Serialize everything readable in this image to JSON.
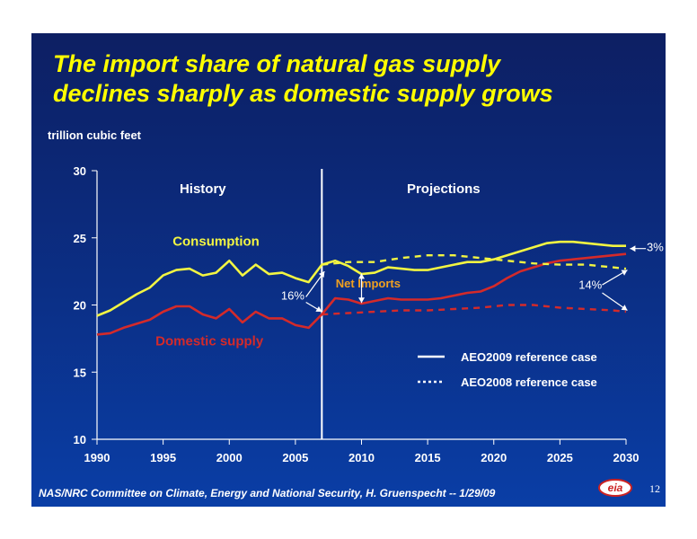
{
  "slide": {
    "title_line1": "The import share of natural gas supply",
    "title_line2": "declines sharply as domestic supply grows",
    "unit_label": "trillion cubic feet",
    "footer": "NAS/NRC Committee on Climate, Energy and National Security, H. Gruenspecht -- 1/29/09",
    "page_number": "12",
    "logo_text": "eia"
  },
  "chart_data": {
    "type": "line",
    "title": "The import share of natural gas supply declines sharply as domestic supply grows",
    "ylabel": "trillion cubic feet",
    "xlim": [
      1990,
      2030
    ],
    "ylim": [
      10,
      30
    ],
    "x_ticks": [
      1990,
      1995,
      2000,
      2005,
      2010,
      2015,
      2020,
      2025,
      2030
    ],
    "y_ticks": [
      10,
      15,
      20,
      25,
      30
    ],
    "grid": false,
    "legend_position": "bottom-right",
    "colors": {
      "consumption": "#f2f542",
      "domestic": "#d42a2a",
      "divider": "#ffffff",
      "annotation": "#ffffff",
      "net_imports": "#f0a020"
    },
    "divider_year": 2007,
    "region_labels": {
      "history": "History",
      "projections": "Projections"
    },
    "series": [
      {
        "name": "Consumption",
        "case": "AEO2009",
        "style": "solid",
        "x": [
          1990,
          1991,
          1992,
          1993,
          1994,
          1995,
          1996,
          1997,
          1998,
          1999,
          2000,
          2001,
          2002,
          2003,
          2004,
          2005,
          2006,
          2007,
          2008,
          2009,
          2010,
          2011,
          2012,
          2013,
          2014,
          2015,
          2016,
          2017,
          2018,
          2019,
          2020,
          2021,
          2022,
          2023,
          2024,
          2025,
          2026,
          2027,
          2028,
          2029,
          2030
        ],
        "values": [
          19.2,
          19.6,
          20.2,
          20.8,
          21.3,
          22.2,
          22.6,
          22.7,
          22.2,
          22.4,
          23.3,
          22.2,
          23.0,
          22.3,
          22.4,
          22.0,
          21.7,
          23.0,
          23.3,
          22.9,
          22.3,
          22.4,
          22.8,
          22.7,
          22.6,
          22.6,
          22.8,
          23.0,
          23.2,
          23.2,
          23.4,
          23.7,
          24.0,
          24.3,
          24.6,
          24.7,
          24.7,
          24.6,
          24.5,
          24.4,
          24.4
        ]
      },
      {
        "name": "Domestic supply",
        "case": "AEO2009",
        "style": "solid",
        "x": [
          1990,
          1991,
          1992,
          1993,
          1994,
          1995,
          1996,
          1997,
          1998,
          1999,
          2000,
          2001,
          2002,
          2003,
          2004,
          2005,
          2006,
          2007,
          2008,
          2009,
          2010,
          2011,
          2012,
          2013,
          2014,
          2015,
          2016,
          2017,
          2018,
          2019,
          2020,
          2021,
          2022,
          2023,
          2024,
          2025,
          2026,
          2027,
          2028,
          2029,
          2030
        ],
        "values": [
          17.8,
          17.9,
          18.3,
          18.6,
          18.9,
          19.5,
          19.9,
          19.9,
          19.3,
          19.0,
          19.7,
          18.7,
          19.5,
          19.0,
          19.0,
          18.5,
          18.3,
          19.3,
          20.5,
          20.4,
          20.1,
          20.3,
          20.5,
          20.4,
          20.4,
          20.4,
          20.5,
          20.7,
          20.9,
          21.0,
          21.4,
          22.0,
          22.5,
          22.8,
          23.1,
          23.3,
          23.4,
          23.5,
          23.6,
          23.7,
          23.8
        ]
      },
      {
        "name": "Consumption",
        "case": "AEO2008",
        "style": "dotted",
        "x": [
          2007,
          2009,
          2011,
          2013,
          2015,
          2017,
          2019,
          2021,
          2023,
          2025,
          2027,
          2029,
          2030
        ],
        "values": [
          23.0,
          23.2,
          23.2,
          23.5,
          23.7,
          23.7,
          23.5,
          23.3,
          23.1,
          23.0,
          23.0,
          22.8,
          22.7
        ]
      },
      {
        "name": "Domestic supply",
        "case": "AEO2008",
        "style": "dotted",
        "x": [
          2007,
          2009,
          2011,
          2013,
          2015,
          2017,
          2019,
          2021,
          2023,
          2025,
          2027,
          2029,
          2030
        ],
        "values": [
          19.3,
          19.4,
          19.5,
          19.6,
          19.6,
          19.7,
          19.8,
          20.0,
          20.0,
          19.8,
          19.7,
          19.6,
          19.5
        ]
      }
    ],
    "annotations": [
      {
        "id": "consumption",
        "text": "Consumption",
        "x": 1999,
        "y": 24.4,
        "color": "#f2f542"
      },
      {
        "id": "domestic",
        "text": "Domestic supply",
        "x": 1998.5,
        "y": 17.0,
        "color": "#d42a2a"
      },
      {
        "id": "net_imports",
        "text": "Net Imports",
        "x": 2010.5,
        "y": 21.3,
        "color": "#f0a020"
      },
      {
        "id": "pct16",
        "text": "16%",
        "x": 2004.8,
        "y": 20.4,
        "color": "#ffffff"
      },
      {
        "id": "pct14",
        "text": "14%",
        "x": 2027.3,
        "y": 21.2,
        "color": "#ffffff"
      },
      {
        "id": "pct3",
        "text": "3%",
        "x": 2032.2,
        "y": 24.0,
        "color": "#ffffff"
      }
    ],
    "legend": [
      {
        "label": "AEO2009 reference case",
        "style": "solid"
      },
      {
        "label": "AEO2008 reference case",
        "style": "dotted"
      }
    ]
  }
}
